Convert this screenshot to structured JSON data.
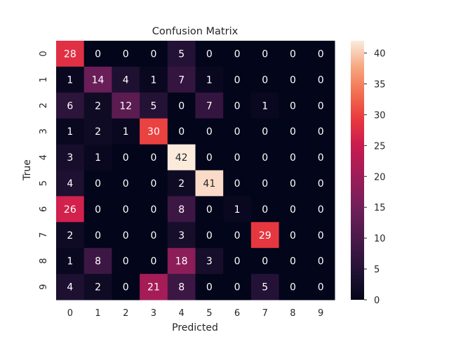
{
  "chart_data": {
    "type": "heatmap",
    "title": "Confusion Matrix",
    "xlabel": "Predicted",
    "ylabel": "True",
    "x_categories": [
      "0",
      "1",
      "2",
      "3",
      "4",
      "5",
      "6",
      "7",
      "8",
      "9"
    ],
    "y_categories": [
      "0",
      "1",
      "2",
      "3",
      "4",
      "5",
      "6",
      "7",
      "8",
      "9"
    ],
    "values": [
      [
        28,
        0,
        0,
        0,
        5,
        0,
        0,
        0,
        0,
        0
      ],
      [
        1,
        14,
        4,
        1,
        7,
        1,
        0,
        0,
        0,
        0
      ],
      [
        6,
        2,
        12,
        5,
        0,
        7,
        0,
        1,
        0,
        0
      ],
      [
        1,
        2,
        1,
        30,
        0,
        0,
        0,
        0,
        0,
        0
      ],
      [
        3,
        1,
        0,
        0,
        42,
        0,
        0,
        0,
        0,
        0
      ],
      [
        4,
        0,
        0,
        0,
        2,
        41,
        0,
        0,
        0,
        0
      ],
      [
        26,
        0,
        0,
        0,
        8,
        0,
        1,
        0,
        0,
        0
      ],
      [
        2,
        0,
        0,
        0,
        3,
        0,
        0,
        29,
        0,
        0
      ],
      [
        1,
        8,
        0,
        0,
        18,
        3,
        0,
        0,
        0,
        0
      ],
      [
        4,
        2,
        0,
        21,
        8,
        0,
        0,
        5,
        0,
        0
      ]
    ],
    "colorbar": {
      "range": [
        0,
        42
      ],
      "ticks": [
        "0",
        "5",
        "10",
        "15",
        "20",
        "25",
        "30",
        "35",
        "40"
      ],
      "colormap": "rocket"
    }
  }
}
